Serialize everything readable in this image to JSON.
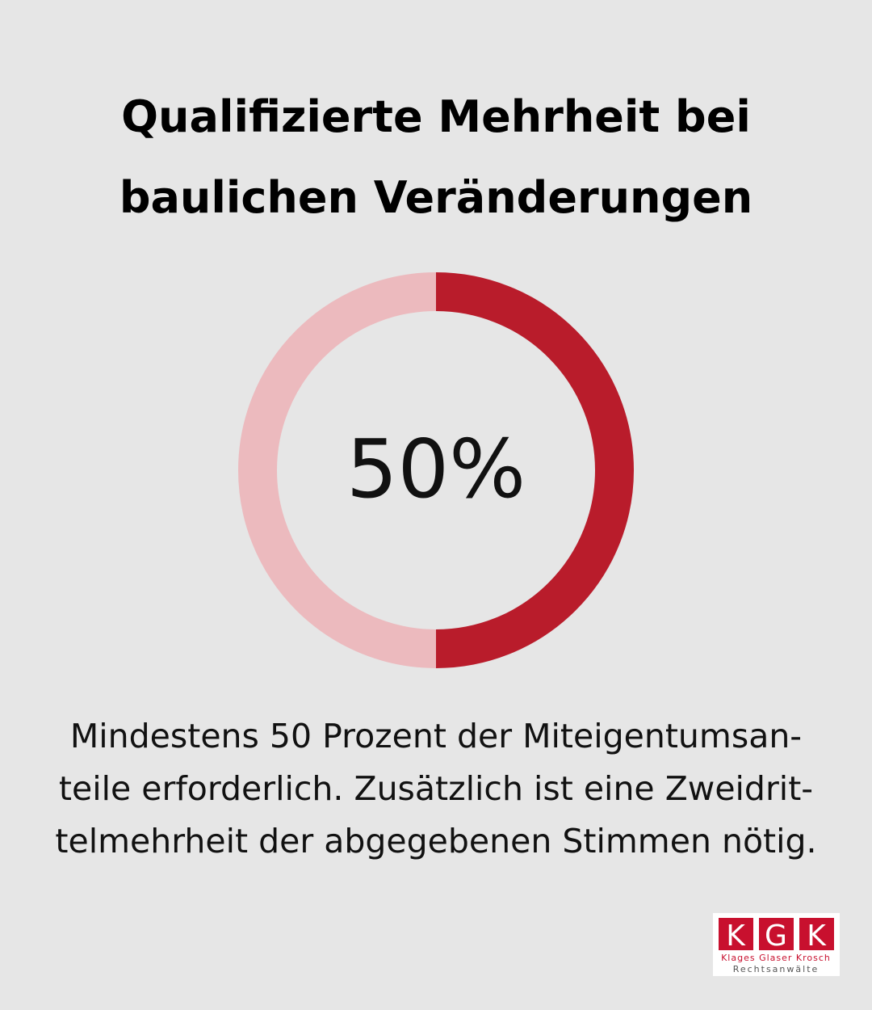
{
  "chart_data": {
    "type": "donut",
    "title_lines": [
      "Qualifizierte Mehrheit bei",
      "baulichen Veränderungen"
    ],
    "values": [
      50,
      50
    ],
    "colors": [
      "#b91c2b",
      "#ecbabe"
    ],
    "center_label": "50%",
    "description_lines": [
      "Mindestens 50 Prozent der Miteigentumsan-",
      "teile erforderlich. Zusätzlich ist eine Zweidrit-",
      "telmehrheit der abgegebenen Stimmen nötig."
    ]
  },
  "logo": {
    "letters": [
      "K",
      "G",
      "K"
    ],
    "names": "Klages Glaser Krosch",
    "subtitle": "Rechtsanwälte"
  }
}
